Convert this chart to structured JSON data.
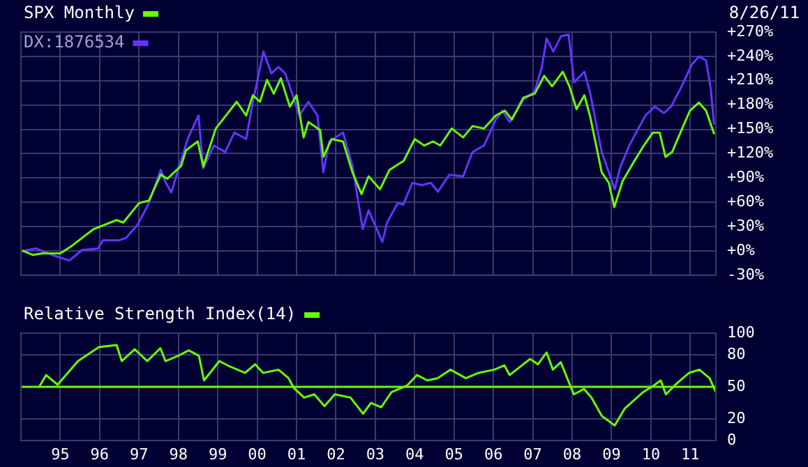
{
  "chart_data": [
    {
      "type": "line",
      "annotations": [
        "8/26/11"
      ],
      "legend": "top left",
      "grid": true,
      "marker": "none",
      "tick_labels": "y",
      "xlim": [
        1994,
        2011.65
      ],
      "xticks": [
        {
          "value": 1995,
          "label": null
        },
        {
          "value": 1996,
          "label": null
        },
        {
          "value": 1997,
          "label": null
        },
        {
          "value": 1998,
          "label": null
        },
        {
          "value": 1999,
          "label": null
        },
        {
          "value": 2000,
          "label": null
        },
        {
          "value": 2001,
          "label": null
        },
        {
          "value": 2002,
          "label": null
        },
        {
          "value": 2003,
          "label": null
        },
        {
          "value": 2004,
          "label": null
        },
        {
          "value": 2005,
          "label": null
        },
        {
          "value": 2006,
          "label": null
        },
        {
          "value": 2007,
          "label": null
        },
        {
          "value": 2008,
          "label": null
        },
        {
          "value": 2009,
          "label": null
        },
        {
          "value": 2010,
          "label": null
        },
        {
          "value": 2011,
          "label": null
        }
      ],
      "ylim": [
        -30,
        270
      ],
      "yticks": [
        {
          "value": -30,
          "label": "-30%"
        },
        {
          "value": 0,
          "label": "+0%"
        },
        {
          "value": 30,
          "label": "+30%"
        },
        {
          "value": 60,
          "label": "+60%"
        },
        {
          "value": 90,
          "label": "+90%"
        },
        {
          "value": 120,
          "label": "+120%"
        },
        {
          "value": 150,
          "label": "+150%"
        },
        {
          "value": 180,
          "label": "+180%"
        },
        {
          "value": 210,
          "label": "+210%"
        },
        {
          "value": 240,
          "label": "+240%"
        },
        {
          "value": 270,
          "label": "+270%"
        }
      ],
      "series": [
        {
          "name": "SPX Monthly",
          "color": "#66ff00",
          "x": [
            1994.05,
            1994.3,
            1994.55,
            1995.0,
            1995.26,
            1995.85,
            1996.43,
            1996.6,
            1997.0,
            1997.25,
            1997.55,
            1997.72,
            1998.07,
            1998.19,
            1998.49,
            1998.63,
            1998.95,
            1999.48,
            1999.72,
            1999.89,
            2000.07,
            2000.25,
            2000.42,
            2000.6,
            2000.83,
            2001.0,
            2001.18,
            2001.3,
            2001.6,
            2001.68,
            2001.89,
            2002.18,
            2002.42,
            2002.65,
            2002.83,
            2003.12,
            2003.36,
            2003.65,
            2003.72,
            2004.0,
            2004.24,
            2004.47,
            2004.65,
            2004.94,
            2005.23,
            2005.47,
            2005.76,
            2006.06,
            2006.29,
            2006.47,
            2006.76,
            2007.05,
            2007.29,
            2007.49,
            2007.76,
            2007.93,
            2008.11,
            2008.31,
            2008.46,
            2008.75,
            2008.93,
            2009.07,
            2009.28,
            2009.58,
            2009.82,
            2010.05,
            2010.22,
            2010.37,
            2010.54,
            2010.75,
            2010.99,
            2011.22,
            2011.4,
            2011.6
          ],
          "values": [
            0,
            -5,
            -3,
            -3,
            5,
            27,
            38,
            35,
            59,
            62,
            94,
            89,
            105,
            124,
            135,
            104,
            151,
            184,
            167,
            192,
            184,
            211,
            194,
            213,
            178,
            192,
            140,
            159,
            149,
            116,
            138,
            135,
            97,
            70,
            92,
            76,
            100,
            109,
            111,
            138,
            130,
            135,
            130,
            151,
            140,
            154,
            151,
            167,
            173,
            162,
            189,
            194,
            216,
            203,
            221,
            203,
            175,
            192,
            165,
            97,
            84,
            54,
            86,
            111,
            130,
            146,
            146,
            116,
            122,
            146,
            173,
            183,
            173,
            145
          ]
        },
        {
          "name": "DX:1876534",
          "color": "#6633ff",
          "x": [
            1994.05,
            1994.38,
            1994.79,
            1995.23,
            1995.55,
            1995.96,
            1996.08,
            1996.49,
            1996.67,
            1996.96,
            1997.25,
            1997.55,
            1997.66,
            1997.82,
            1998.01,
            1998.25,
            1998.51,
            1998.63,
            1998.9,
            1999.19,
            1999.42,
            1999.72,
            1999.89,
            2000.16,
            2000.36,
            2000.54,
            2000.71,
            2000.89,
            2001.07,
            2001.3,
            2001.53,
            2001.68,
            2001.83,
            2002.18,
            2002.42,
            2002.68,
            2002.83,
            2003.18,
            2003.3,
            2003.57,
            2003.71,
            2003.94,
            2004.18,
            2004.41,
            2004.59,
            2004.88,
            2005.23,
            2005.47,
            2005.76,
            2006.06,
            2006.23,
            2006.41,
            2006.76,
            2007.05,
            2007.23,
            2007.35,
            2007.52,
            2007.72,
            2007.91,
            2008.05,
            2008.31,
            2008.46,
            2008.75,
            2008.93,
            2009.08,
            2009.22,
            2009.45,
            2009.68,
            2009.86,
            2010.1,
            2010.33,
            2010.51,
            2010.75,
            2011.04,
            2011.22,
            2011.4,
            2011.52,
            2011.6
          ],
          "values": [
            0,
            3,
            -5,
            -12,
            1,
            3,
            13,
            13,
            16,
            32,
            59,
            100,
            86,
            72,
            103,
            140,
            167,
            102,
            130,
            122,
            146,
            138,
            184,
            246,
            219,
            227,
            219,
            194,
            167,
            184,
            167,
            97,
            135,
            146,
            105,
            27,
            50,
            11,
            35,
            59,
            57,
            84,
            81,
            84,
            73,
            94,
            92,
            122,
            130,
            162,
            173,
            159,
            186,
            197,
            227,
            262,
            246,
            265,
            267,
            208,
            221,
            194,
            122,
            97,
            76,
            103,
            130,
            151,
            167,
            178,
            170,
            178,
            200,
            230,
            240,
            235,
            200,
            157
          ]
        }
      ]
    },
    {
      "type": "line",
      "legend": "top left",
      "grid": true,
      "marker": "none",
      "xlim": [
        1994,
        2011.65
      ],
      "xticks": [
        {
          "value": 1995,
          "label": "95"
        },
        {
          "value": 1996,
          "label": "96"
        },
        {
          "value": 1997,
          "label": "97"
        },
        {
          "value": 1998,
          "label": "98"
        },
        {
          "value": 1999,
          "label": "99"
        },
        {
          "value": 2000,
          "label": "00"
        },
        {
          "value": 2001,
          "label": "01"
        },
        {
          "value": 2002,
          "label": "02"
        },
        {
          "value": 2003,
          "label": "03"
        },
        {
          "value": 2004,
          "label": "04"
        },
        {
          "value": 2005,
          "label": "05"
        },
        {
          "value": 2006,
          "label": "06"
        },
        {
          "value": 2007,
          "label": "07"
        },
        {
          "value": 2008,
          "label": "08"
        },
        {
          "value": 2009,
          "label": "09"
        },
        {
          "value": 2010,
          "label": "10"
        },
        {
          "value": 2011,
          "label": "11"
        }
      ],
      "ylim": [
        0,
        100
      ],
      "yticks": [
        0,
        20,
        50,
        80,
        100
      ],
      "ref_lines": [
        {
          "axis": "y",
          "value": 50,
          "color": "#66ff00"
        }
      ],
      "series": [
        {
          "name": "Relative Strength Index(14)",
          "color": "#66ff00",
          "x": [
            1994.48,
            1994.64,
            1994.8,
            1994.93,
            1995.45,
            1995.98,
            1996.43,
            1996.56,
            1996.89,
            1997.21,
            1997.54,
            1997.67,
            1998.0,
            1998.26,
            1998.52,
            1998.65,
            1999.04,
            1999.3,
            1999.69,
            1999.95,
            2000.15,
            2000.54,
            2000.8,
            2000.93,
            2001.19,
            2001.45,
            2001.71,
            2001.97,
            2002.37,
            2002.69,
            2002.89,
            2003.15,
            2003.41,
            2003.8,
            2004.06,
            2004.32,
            2004.58,
            2004.91,
            2005.3,
            2005.62,
            2006.02,
            2006.28,
            2006.41,
            2006.93,
            2007.13,
            2007.35,
            2007.51,
            2007.71,
            2008.04,
            2008.3,
            2008.49,
            2008.75,
            2009.08,
            2009.34,
            2009.8,
            2010.06,
            2010.25,
            2010.38,
            2010.65,
            2010.97,
            2011.23,
            2011.49,
            2011.65
          ],
          "values": [
            51,
            61,
            56,
            52,
            74,
            87,
            89,
            74,
            85,
            74,
            86,
            74,
            79,
            84,
            79,
            56,
            74,
            69,
            63,
            71,
            63,
            66,
            58,
            49,
            40,
            43,
            32,
            43,
            40,
            25,
            35,
            31,
            45,
            51,
            61,
            56,
            58,
            66,
            58,
            63,
            66,
            70,
            61,
            76,
            71,
            82,
            66,
            73,
            43,
            48,
            40,
            23,
            14,
            30,
            45,
            51,
            56,
            43,
            53,
            63,
            66,
            58,
            45
          ]
        }
      ]
    }
  ]
}
